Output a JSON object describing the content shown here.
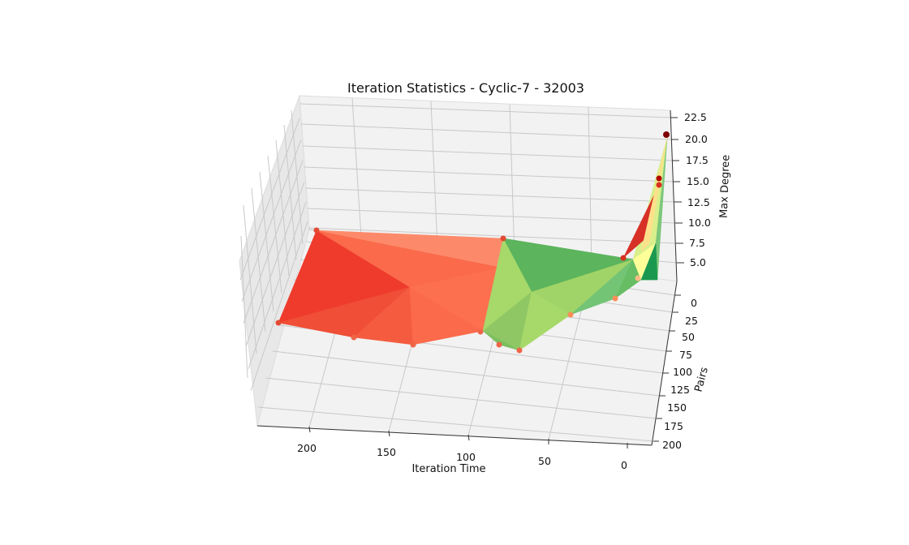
{
  "chart_data": {
    "type": "surface3d",
    "title": "Iteration Statistics - Cyclic-7 - 32003",
    "xlabel": "Iteration Time",
    "ylabel": "Pairs",
    "zlabel": "Max Degree",
    "x_ticks": [
      "200",
      "150",
      "100",
      "50",
      "0"
    ],
    "y_ticks": [
      "0",
      "25",
      "50",
      "75",
      "100",
      "125",
      "150",
      "175",
      "200"
    ],
    "z_ticks": [
      "5.0",
      "7.5",
      "10.0",
      "12.5",
      "15.0",
      "17.5",
      "20.0",
      "22.5"
    ],
    "colormap": [
      "#1a9850",
      "#66bd63",
      "#a6d96a",
      "#d9ef8b",
      "#ffffbf",
      "#fee08b",
      "#fdae61",
      "#f46d43",
      "#d73027"
    ],
    "grid": true,
    "points": [
      {
        "x": 225,
        "y": 10,
        "z": 7
      },
      {
        "x": 230,
        "y": 125,
        "z": 2
      },
      {
        "x": 180,
        "y": 140,
        "z": 2
      },
      {
        "x": 145,
        "y": 145,
        "z": 2
      },
      {
        "x": 80,
        "y": 20,
        "z": 7
      },
      {
        "x": 88,
        "y": 120,
        "z": 3
      },
      {
        "x": 82,
        "y": 140,
        "z": 2
      },
      {
        "x": 70,
        "y": 150,
        "z": 2
      },
      {
        "x": 40,
        "y": 105,
        "z": 2
      },
      {
        "x": 10,
        "y": 80,
        "z": 3
      },
      {
        "x": 5,
        "y": 50,
        "z": 4
      },
      {
        "x": 3,
        "y": 30,
        "z": 5
      },
      {
        "x": 2,
        "y": 12,
        "z": 9
      },
      {
        "x": 1,
        "y": 5,
        "z": 16
      },
      {
        "x": 0,
        "y": 2,
        "z": 21
      }
    ]
  }
}
